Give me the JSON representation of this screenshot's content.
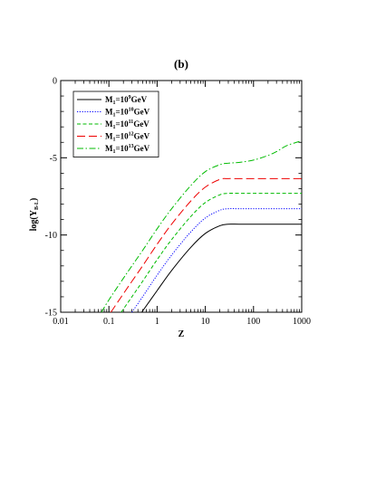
{
  "chart_data": {
    "type": "line",
    "title": "(b)",
    "xlabel": "Z",
    "ylabel_main": "log(Y",
    "ylabel_sub": "B-L",
    "ylabel_close": ")",
    "x_scale": "log",
    "xlim": [
      0.01,
      1000
    ],
    "ylim": [
      -15,
      0
    ],
    "x_ticks": [
      {
        "value": 0.01,
        "label": "0.01"
      },
      {
        "value": 0.1,
        "label": "0.1"
      },
      {
        "value": 1,
        "label": "1"
      },
      {
        "value": 10,
        "label": "10"
      },
      {
        "value": 100,
        "label": "100"
      },
      {
        "value": 1000,
        "label": "1000"
      }
    ],
    "y_ticks": [
      {
        "value": 0,
        "label": "0"
      },
      {
        "value": -5,
        "label": "-5"
      },
      {
        "value": -10,
        "label": "-10"
      },
      {
        "value": -15,
        "label": "-15"
      }
    ],
    "grid": false,
    "legend_position": "top-left",
    "series": [
      {
        "name": "M1=10^9GeV",
        "label_parts": {
          "main": "M",
          "sub": "1",
          "mid": "=10",
          "sup": "9",
          "unit": "GeV"
        },
        "color": "#000000",
        "dash": "",
        "x": [
          0.48,
          1,
          2,
          5,
          10,
          20,
          30,
          50,
          100,
          300,
          1000
        ],
        "y": [
          -15,
          -13.6,
          -12.3,
          -10.8,
          -9.9,
          -9.4,
          -9.3,
          -9.3,
          -9.3,
          -9.3,
          -9.3
        ]
      },
      {
        "name": "M1=10^10GeV",
        "label_parts": {
          "main": "M",
          "sub": "1",
          "mid": "=10",
          "sup": "10",
          "unit": "GeV"
        },
        "color": "#0000ff",
        "dash": "1.2,1.6",
        "x": [
          0.3,
          0.5,
          1,
          2,
          5,
          10,
          20,
          30,
          50,
          100,
          300,
          1000
        ],
        "y": [
          -15,
          -14.0,
          -12.6,
          -11.3,
          -9.8,
          -8.9,
          -8.4,
          -8.3,
          -8.3,
          -8.3,
          -8.3,
          -8.3
        ]
      },
      {
        "name": "M1=10^11GeV",
        "label_parts": {
          "main": "M",
          "sub": "1",
          "mid": "=10",
          "sup": "11",
          "unit": "GeV"
        },
        "color": "#00bb00",
        "dash": "4,2.5",
        "x": [
          0.18,
          0.3,
          0.5,
          1,
          2,
          5,
          10,
          20,
          30,
          50,
          100,
          300,
          1000
        ],
        "y": [
          -15,
          -14.0,
          -13.0,
          -11.6,
          -10.3,
          -8.8,
          -7.9,
          -7.4,
          -7.3,
          -7.3,
          -7.3,
          -7.3,
          -7.3
        ]
      },
      {
        "name": "M1=10^12GeV",
        "label_parts": {
          "main": "M",
          "sub": "1",
          "mid": "=10",
          "sup": "12",
          "unit": "GeV"
        },
        "color": "#ee0000",
        "dash": "9,4",
        "x": [
          0.11,
          0.2,
          0.3,
          0.5,
          1,
          2,
          5,
          10,
          20,
          30,
          50,
          100,
          300,
          1000
        ],
        "y": [
          -15,
          -13.8,
          -13.0,
          -12.0,
          -10.6,
          -9.3,
          -7.8,
          -6.9,
          -6.4,
          -6.35,
          -6.35,
          -6.35,
          -6.35,
          -6.35
        ]
      },
      {
        "name": "M1=10^13GeV",
        "label_parts": {
          "main": "M",
          "sub": "1",
          "mid": "=10",
          "sup": "13",
          "unit": "GeV"
        },
        "color": "#00bb00",
        "dash": "7,2.5,1.5,2.5",
        "x": [
          0.07,
          0.1,
          0.2,
          0.3,
          0.5,
          1,
          2,
          5,
          10,
          20,
          30,
          50,
          100,
          200,
          300,
          500,
          1000
        ],
        "y": [
          -15,
          -14.2,
          -12.8,
          -12.0,
          -11.0,
          -9.6,
          -8.3,
          -6.8,
          -5.9,
          -5.45,
          -5.35,
          -5.3,
          -5.15,
          -4.85,
          -4.6,
          -4.2,
          -3.9
        ]
      }
    ]
  }
}
